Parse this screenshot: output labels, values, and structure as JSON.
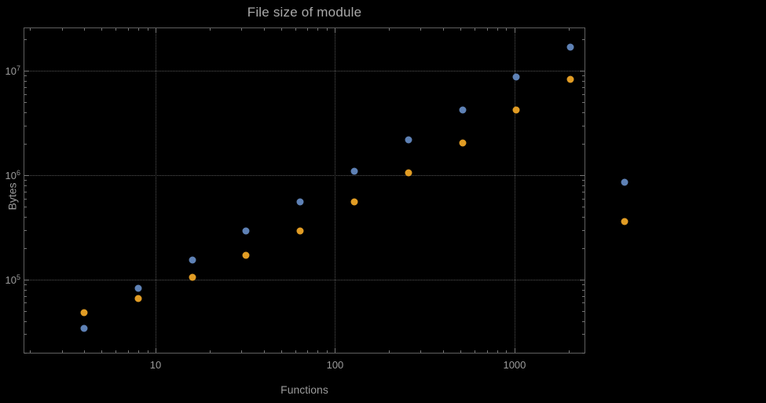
{
  "title": "File size of module",
  "axes": {
    "x_label": "Functions",
    "y_label": "Bytes"
  },
  "colors": {
    "background": "#000000",
    "frame": "#5f5f5f",
    "grid": "#565656",
    "text": "#9b9b9b",
    "series1": "#5e81b5",
    "series2": "#e19c24"
  },
  "chart_data": {
    "type": "scatter",
    "title": "File size of module",
    "xlabel": "Functions",
    "ylabel": "Bytes",
    "x_scale": "log",
    "y_scale": "log",
    "grid": true,
    "legend": "none",
    "xlim": [
      1.84,
      2478
    ],
    "ylim": [
      19600,
      26000000
    ],
    "x": [
      4,
      8,
      16,
      32,
      64,
      128,
      256,
      512,
      1024,
      2048,
      4096
    ],
    "series": [
      {
        "name": "series-1-blue",
        "color": "#5e81b5",
        "values": [
          34000,
          82000,
          155000,
          290000,
          560000,
          1100000,
          2200000,
          4200000,
          8700000,
          17000000,
          850000
        ]
      },
      {
        "name": "series-2-orange",
        "color": "#e19c24",
        "values": [
          48000,
          66000,
          105000,
          170000,
          290000,
          560000,
          1050000,
          2050000,
          4200000,
          8300000,
          360000
        ]
      }
    ],
    "x_ticks": [
      {
        "value": 10,
        "label": "10"
      },
      {
        "value": 100,
        "label": "100"
      },
      {
        "value": 1000,
        "label": "1000"
      }
    ],
    "y_ticks": [
      {
        "value": 100000,
        "base": "10",
        "exp": "5"
      },
      {
        "value": 1000000,
        "base": "10",
        "exp": "6"
      },
      {
        "value": 10000000,
        "base": "10",
        "exp": "7"
      }
    ]
  }
}
